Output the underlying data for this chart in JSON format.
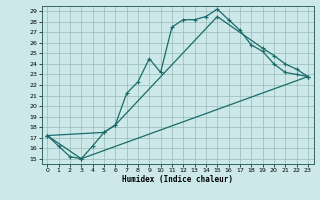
{
  "xlabel": "Humidex (Indice chaleur)",
  "background_color": "#cce8e8",
  "grid_color": "#99bbbb",
  "line_color": "#1a6b6b",
  "xlim": [
    -0.5,
    23.5
  ],
  "ylim": [
    14.5,
    29.5
  ],
  "yticks": [
    15,
    16,
    17,
    18,
    19,
    20,
    21,
    22,
    23,
    24,
    25,
    26,
    27,
    28,
    29
  ],
  "xticks": [
    0,
    1,
    2,
    3,
    4,
    5,
    6,
    7,
    8,
    9,
    10,
    11,
    12,
    13,
    14,
    15,
    16,
    17,
    18,
    19,
    20,
    21,
    22,
    23
  ],
  "line1_x": [
    0,
    1,
    2,
    3,
    4,
    5,
    6,
    7,
    8,
    9,
    10,
    11,
    12,
    13,
    14,
    15,
    16,
    17,
    18,
    19,
    20,
    21,
    22,
    23
  ],
  "line1_y": [
    17.2,
    16.2,
    15.2,
    15.0,
    16.2,
    17.5,
    18.2,
    21.2,
    22.3,
    24.5,
    23.2,
    27.5,
    28.2,
    28.2,
    28.5,
    29.2,
    28.2,
    27.2,
    25.8,
    25.2,
    24.0,
    23.2,
    23.0,
    22.8
  ],
  "line2_x": [
    0,
    5,
    6,
    15,
    19,
    20,
    21,
    22,
    23
  ],
  "line2_y": [
    17.2,
    17.5,
    18.2,
    28.5,
    25.5,
    24.8,
    24.0,
    23.5,
    22.8
  ],
  "line3_x": [
    0,
    3,
    23
  ],
  "line3_y": [
    17.2,
    15.0,
    22.8
  ]
}
